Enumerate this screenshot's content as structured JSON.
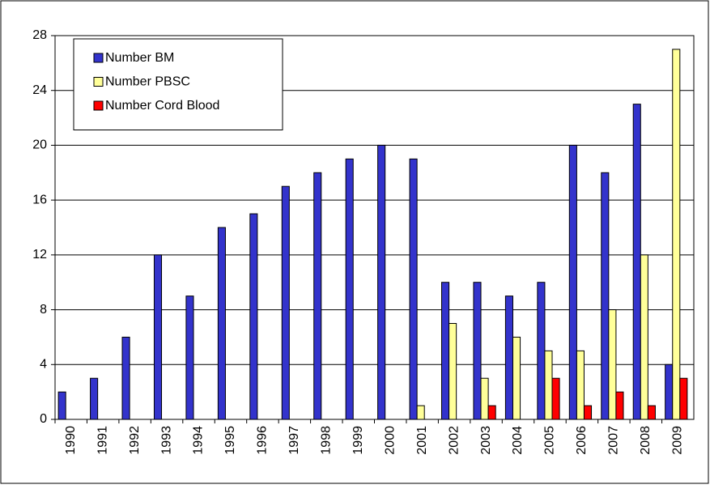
{
  "chart_data": {
    "type": "bar",
    "categories": [
      "1990",
      "1991",
      "1992",
      "1993",
      "1994",
      "1995",
      "1996",
      "1997",
      "1998",
      "1999",
      "2000",
      "2001",
      "2002",
      "2003",
      "2004",
      "2005",
      "2006",
      "2007",
      "2008",
      "2009"
    ],
    "series": [
      {
        "name": "Number BM",
        "color": "#3333cc",
        "values": [
          2,
          3,
          6,
          12,
          9,
          14,
          15,
          17,
          18,
          19,
          20,
          19,
          10,
          10,
          9,
          10,
          20,
          18,
          23,
          4
        ]
      },
      {
        "name": "Number PBSC",
        "color": "#ffff99",
        "values": [
          0,
          0,
          0,
          0,
          0,
          0,
          0,
          0,
          0,
          0,
          0,
          1,
          7,
          3,
          6,
          5,
          5,
          8,
          12,
          27
        ]
      },
      {
        "name": "Number Cord Blood",
        "color": "#ff0000",
        "values": [
          0,
          0,
          0,
          0,
          0,
          0,
          0,
          0,
          0,
          0,
          0,
          0,
          0,
          1,
          0,
          3,
          1,
          2,
          1,
          3
        ]
      }
    ],
    "ylim": [
      0,
      28
    ],
    "yticks": [
      0,
      4,
      8,
      12,
      16,
      20,
      24,
      28
    ],
    "grid": true,
    "legend": "upper left"
  }
}
